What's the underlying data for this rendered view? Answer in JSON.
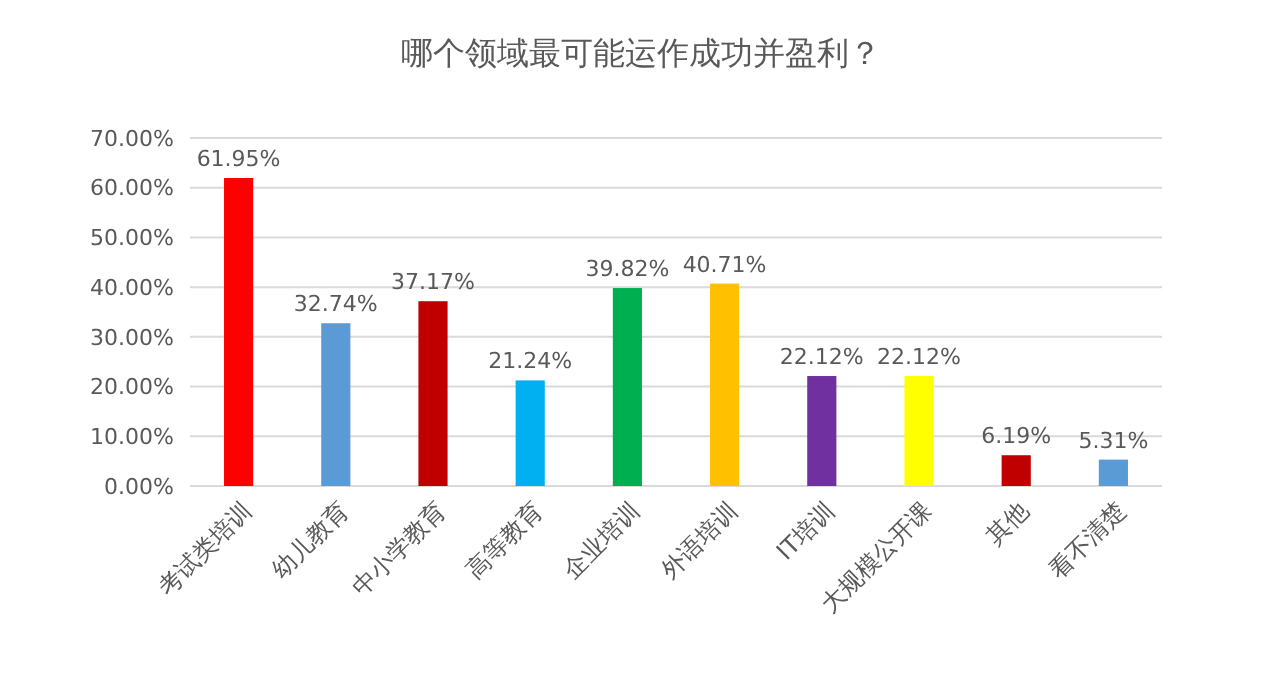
{
  "chart_data": {
    "type": "bar",
    "title": "哪个领域最可能运作成功并盈利？",
    "categories": [
      "考试类培训",
      "幼儿教育",
      "中小学教育",
      "高等教育",
      "企业培训",
      "外语培训",
      "IT培训",
      "大规模公开课",
      "其他",
      "看不清楚"
    ],
    "values": [
      61.95,
      32.74,
      37.17,
      21.24,
      39.82,
      40.71,
      22.12,
      22.12,
      6.19,
      5.31
    ],
    "colors": [
      "#ff0000",
      "#5b9bd5",
      "#c00000",
      "#00b0f0",
      "#00b050",
      "#ffc000",
      "#7030a0",
      "#ffff00",
      "#c00000",
      "#5b9bd5"
    ],
    "value_labels": [
      "61.95%",
      "32.74%",
      "37.17%",
      "21.24%",
      "39.82%",
      "40.71%",
      "22.12%",
      "22.12%",
      "6.19%",
      "5.31%"
    ],
    "ylim": [
      0,
      70
    ],
    "yticks": [
      {
        "value": 0,
        "label": "0.00%"
      },
      {
        "value": 10,
        "label": "10.00%"
      },
      {
        "value": 20,
        "label": "20.00%"
      },
      {
        "value": 30,
        "label": "30.00%"
      },
      {
        "value": 40,
        "label": "40.00%"
      },
      {
        "value": 50,
        "label": "50.00%"
      },
      {
        "value": 60,
        "label": "60.00%"
      },
      {
        "value": 70,
        "label": "70.00%"
      }
    ],
    "grid": "y"
  }
}
